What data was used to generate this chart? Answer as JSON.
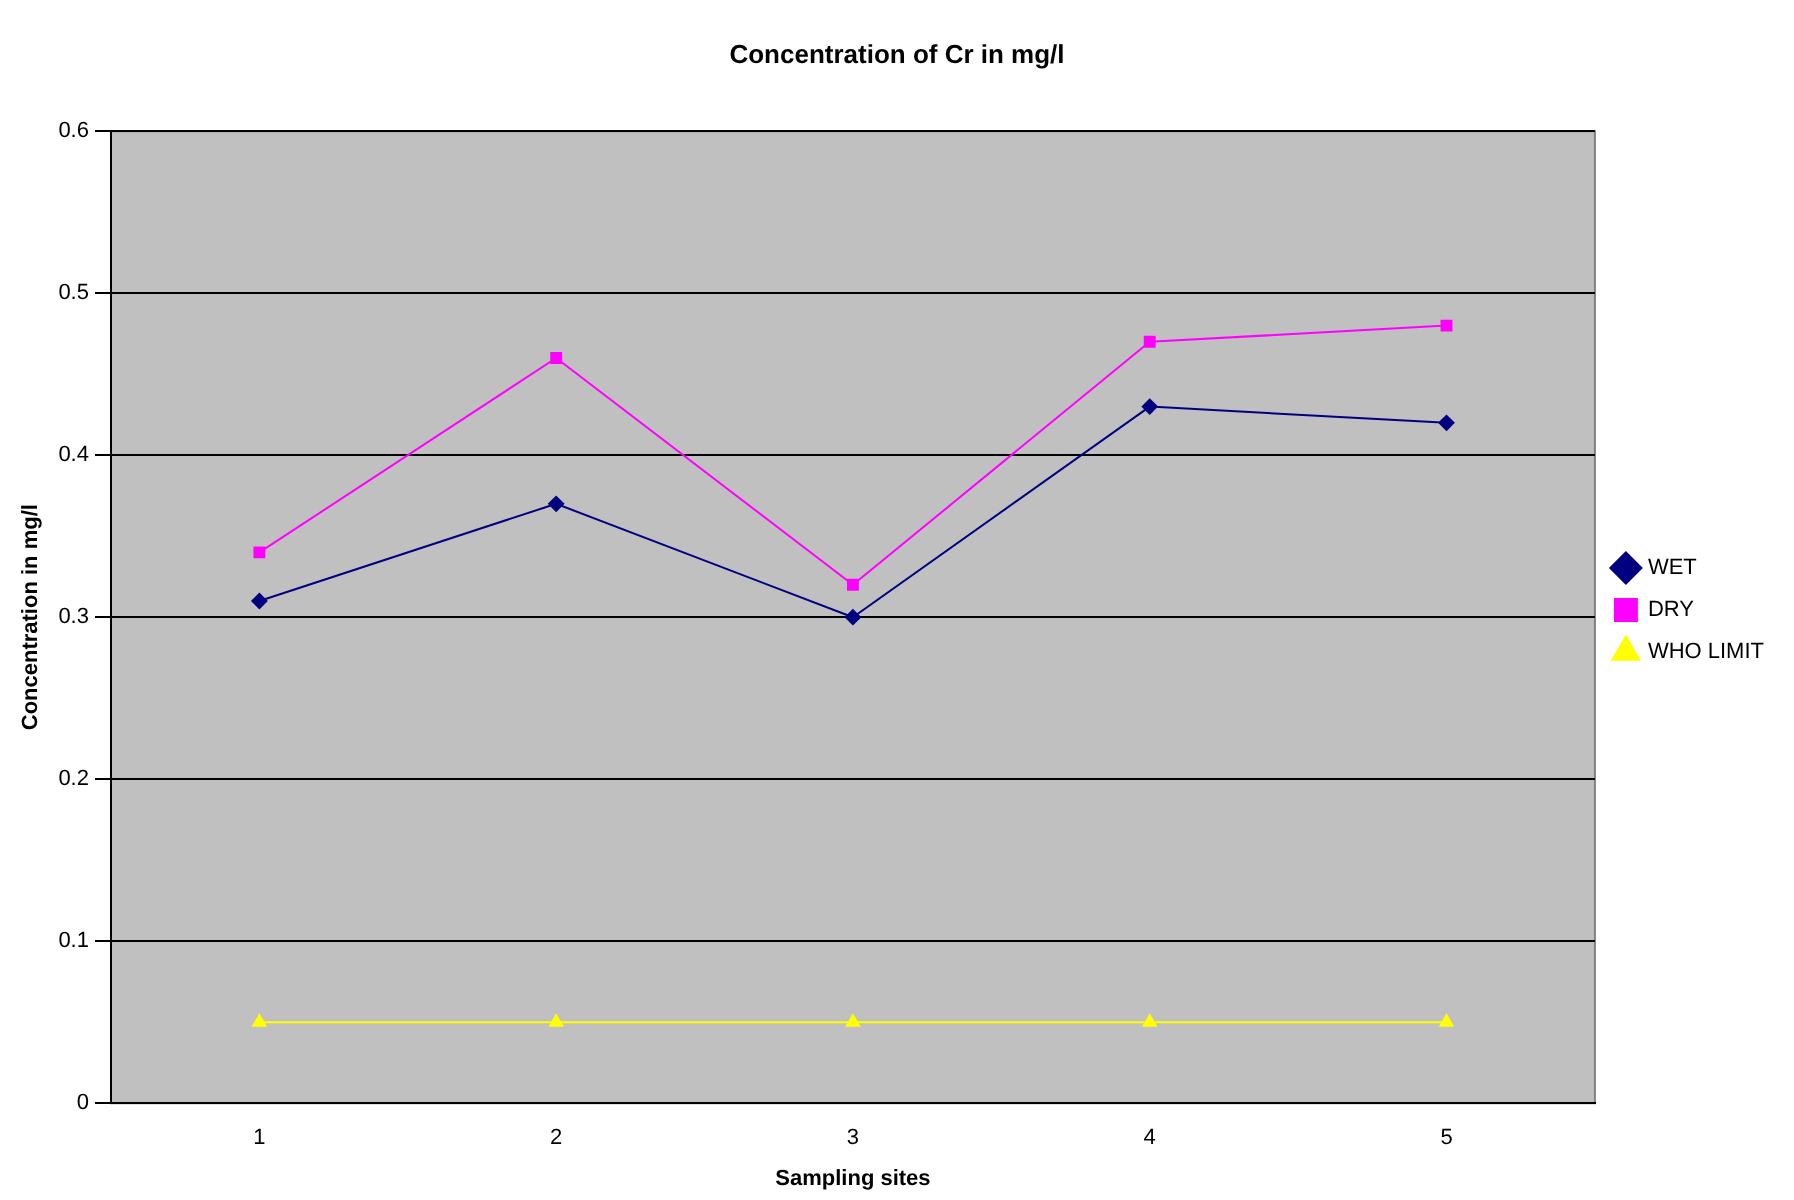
{
  "chart_data": {
    "type": "line",
    "title": "Concentration of Cr in mg/l",
    "xlabel": "Sampling sites",
    "ylabel": "Concentration in mg/l",
    "categories": [
      "1",
      "2",
      "3",
      "4",
      "5"
    ],
    "series": [
      {
        "name": "WET",
        "color": "#000080",
        "marker": "diamond",
        "values": [
          0.31,
          0.37,
          0.3,
          0.43,
          0.42
        ]
      },
      {
        "name": "DRY",
        "color": "#ff00ff",
        "marker": "square",
        "values": [
          0.34,
          0.46,
          0.32,
          0.47,
          0.48
        ]
      },
      {
        "name": "WHO LIMIT",
        "color": "#ffff00",
        "marker": "triangle",
        "values": [
          0.05,
          0.05,
          0.05,
          0.05,
          0.05
        ]
      }
    ],
    "ylim": [
      0,
      0.6
    ],
    "yticks": [
      0,
      0.1,
      0.2,
      0.3,
      0.4,
      0.5,
      0.6
    ],
    "grid": "y",
    "legend": "right"
  }
}
